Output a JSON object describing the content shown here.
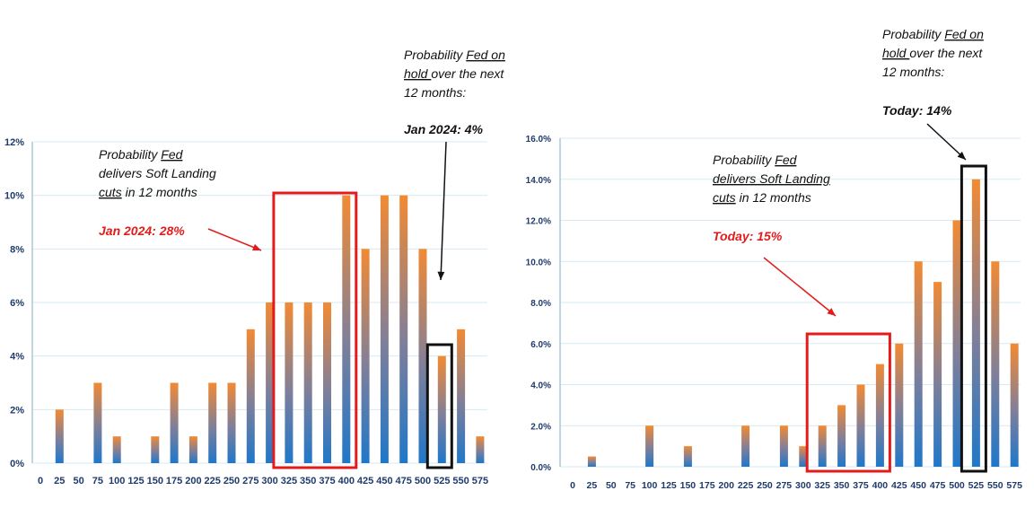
{
  "chart_data": [
    {
      "type": "bar",
      "title": "",
      "xlabel": "",
      "ylabel": "",
      "ylim": [
        0,
        12
      ],
      "ytick_labels": [
        "0%",
        "2%",
        "4%",
        "6%",
        "8%",
        "10%",
        "12%"
      ],
      "categories": [
        "0",
        "25",
        "50",
        "75",
        "100",
        "125",
        "150",
        "175",
        "200",
        "225",
        "250",
        "275",
        "300",
        "325",
        "350",
        "375",
        "400",
        "425",
        "450",
        "475",
        "500",
        "525",
        "550",
        "575"
      ],
      "values": [
        0,
        2,
        0,
        3,
        1,
        0,
        1,
        3,
        1,
        3,
        3,
        5,
        6,
        6,
        6,
        6,
        10,
        8,
        10,
        10,
        8,
        4,
        5,
        1
      ],
      "value_format": "percent",
      "annotations": {
        "soft_landing": {
          "line1": "Probability ",
          "line1_u": "Fed",
          "line2": "delivers Soft Landing",
          "line3_u": "cuts",
          "line3": " in 12 months",
          "highlight": "Jan 2024: 28%",
          "highlight_color": "#e31b1b"
        },
        "on_hold": {
          "line1": "Probability ",
          "line1_u": "Fed on",
          "line2_u": "hold ",
          "line2": "over the next",
          "line3": "12 months:",
          "highlight": "Jan 2024: 4%",
          "highlight_color": "#111111"
        }
      },
      "boxes": {
        "soft_landing_range": [
          "325",
          "400"
        ],
        "on_hold_range": [
          "525",
          "525"
        ]
      }
    },
    {
      "type": "bar",
      "title": "",
      "xlabel": "",
      "ylabel": "",
      "ylim": [
        0,
        16
      ],
      "ytick_labels": [
        "0.0%",
        "2.0%",
        "4.0%",
        "6.0%",
        "8.0%",
        "10.0%",
        "12.0%",
        "14.0%",
        "16.0%"
      ],
      "categories": [
        "0",
        "25",
        "50",
        "75",
        "100",
        "125",
        "150",
        "175",
        "200",
        "225",
        "250",
        "275",
        "300",
        "325",
        "350",
        "375",
        "400",
        "425",
        "450",
        "475",
        "500",
        "525",
        "550",
        "575"
      ],
      "values": [
        0,
        0.5,
        0,
        0,
        2,
        0,
        1,
        0,
        0,
        2,
        0,
        2,
        1,
        2,
        3,
        4,
        5,
        6,
        10,
        9,
        12,
        14,
        10,
        6
      ],
      "value_format": "percent",
      "annotations": {
        "soft_landing": {
          "line1": "Probability ",
          "line1_u": "Fed",
          "line2_u": "delivers Soft Landing",
          "line3_u": "cuts",
          "line3": " in 12 months",
          "highlight": "Today: 15%",
          "highlight_color": "#e31b1b"
        },
        "on_hold": {
          "line1": "Probability ",
          "line1_u": "Fed on",
          "line2_u": "hold ",
          "line2": "over the next",
          "line3": "12 months:",
          "highlight": "Today: 14%",
          "highlight_color": "#111111"
        }
      },
      "boxes": {
        "soft_landing_range": [
          "325",
          "400"
        ],
        "on_hold_range": [
          "525",
          "525"
        ]
      }
    }
  ],
  "colors": {
    "bar_top": "#f28a33",
    "bar_bottom": "#1f77c9",
    "grid": "#d7e9f2",
    "axis": "#a9c8da",
    "tick_text": "#1f3a6b",
    "soft_box": "#e31b1b",
    "hold_box": "#111111"
  }
}
